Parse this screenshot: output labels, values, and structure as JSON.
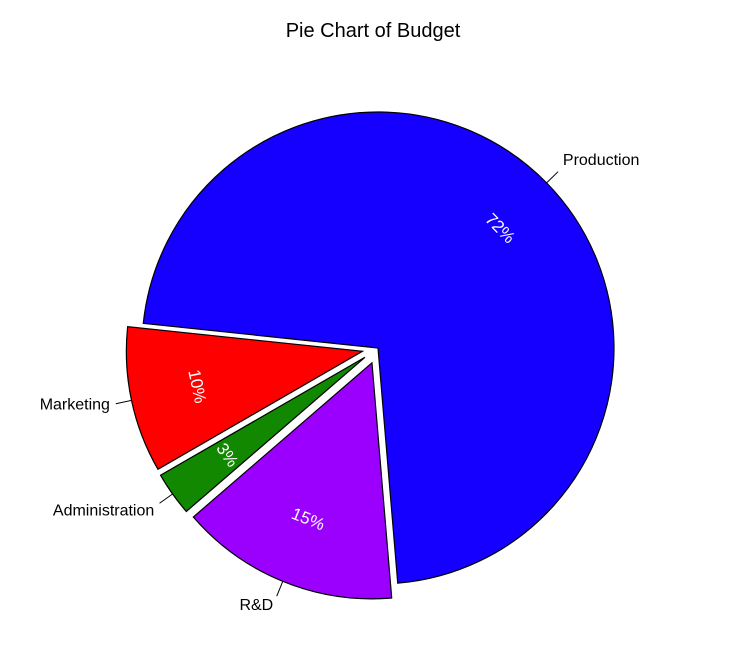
{
  "chart_data": {
    "type": "pie",
    "title": "Pie Chart of Budget",
    "exploded": true,
    "slices": [
      {
        "label": "Production",
        "value": 72,
        "pct_label": "72%",
        "color": "#1500FF"
      },
      {
        "label": "R&D",
        "value": 15,
        "pct_label": "15%",
        "color": "#9B00FF"
      },
      {
        "label": "Administration",
        "value": 3,
        "pct_label": "3%",
        "color": "#118800"
      },
      {
        "label": "Marketing",
        "value": 10,
        "pct_label": "10%",
        "color": "#FF0000"
      }
    ]
  }
}
